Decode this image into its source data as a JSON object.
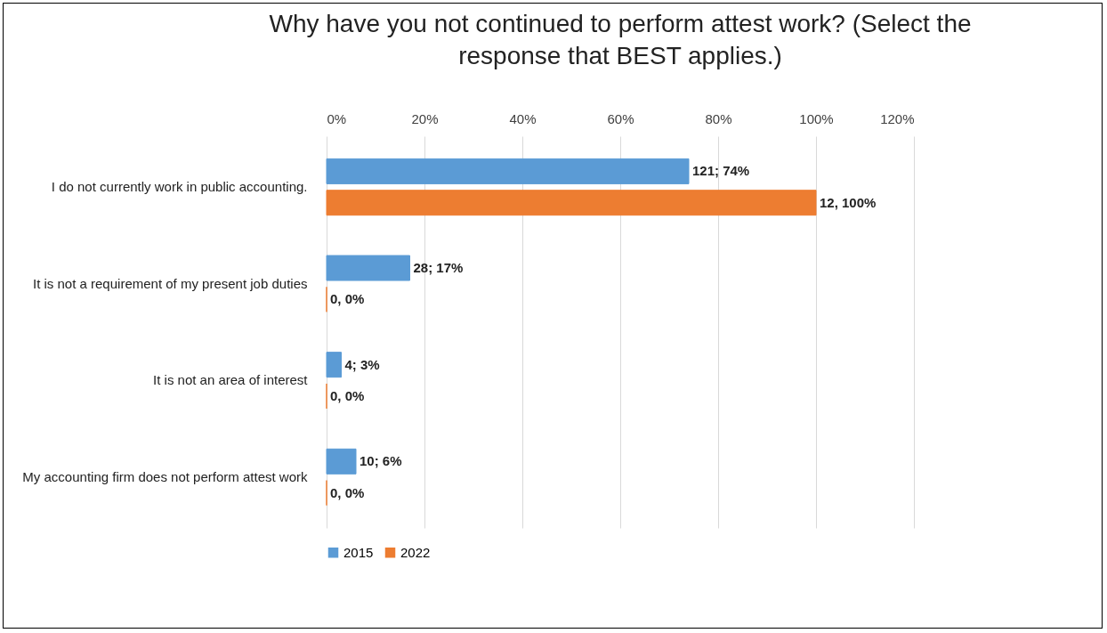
{
  "chart_data": {
    "type": "bar",
    "orientation": "horizontal",
    "title": "Why have you not continued to perform attest work? (Select the response that BEST applies.)",
    "categories": [
      "I do not currently work in public accounting.",
      "It is not a requirement of my present job duties",
      "It is not an area of interest",
      "My accounting firm does not perform attest work"
    ],
    "series": [
      {
        "name": "2015",
        "color": "#5b9bd5",
        "values": [
          74,
          17,
          3,
          6
        ],
        "value_labels": [
          "121; 74%",
          "28; 17%",
          "4; 3%",
          "10; 6%"
        ]
      },
      {
        "name": "2022",
        "color": "#ed7d31",
        "values": [
          100,
          0,
          0,
          0
        ],
        "value_labels": [
          "12, 100%",
          "0, 0%",
          "0, 0%",
          "0, 0%"
        ]
      }
    ],
    "xlim": [
      0,
      120
    ],
    "xticks": [
      {
        "value": 0,
        "label": "0%"
      },
      {
        "value": 20,
        "label": "20%"
      },
      {
        "value": 40,
        "label": "40%"
      },
      {
        "value": 60,
        "label": "60%"
      },
      {
        "value": 80,
        "label": "80%"
      },
      {
        "value": 100,
        "label": "100%"
      },
      {
        "value": 120,
        "label": "120%"
      }
    ],
    "grid": true,
    "legend": "bottom"
  }
}
